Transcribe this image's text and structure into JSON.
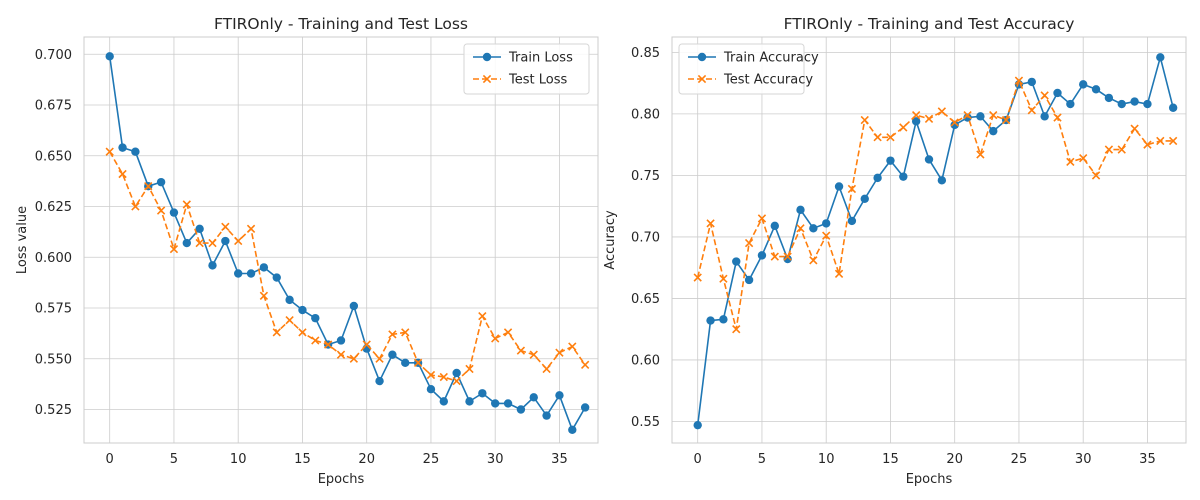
{
  "chart_data": [
    {
      "type": "line",
      "title": "FTIROnly - Training and Test Loss",
      "xlabel": "Epochs",
      "ylabel": "Loss value",
      "xlim": [
        -2,
        38
      ],
      "ylim": [
        0.5085,
        0.7085
      ],
      "xticks": [
        0,
        5,
        10,
        15,
        20,
        25,
        30,
        35
      ],
      "yticks": [
        0.525,
        0.55,
        0.575,
        0.6,
        0.625,
        0.65,
        0.675,
        0.7
      ],
      "ytick_decimals": 3,
      "grid": true,
      "legend_position": "top-right",
      "x": [
        0,
        1,
        2,
        3,
        4,
        5,
        6,
        7,
        8,
        9,
        10,
        11,
        12,
        13,
        14,
        15,
        16,
        17,
        18,
        19,
        20,
        21,
        22,
        23,
        24,
        25,
        26,
        27,
        28,
        29,
        30,
        31,
        32,
        33,
        34,
        35,
        36,
        37
      ],
      "series": [
        {
          "name": "Train Loss",
          "color": "#1f77b4",
          "line": "solid",
          "marker": "circle",
          "values": [
            0.699,
            0.654,
            0.652,
            0.635,
            0.637,
            0.622,
            0.607,
            0.614,
            0.596,
            0.608,
            0.592,
            0.592,
            0.595,
            0.59,
            0.579,
            0.574,
            0.57,
            0.557,
            0.559,
            0.576,
            0.555,
            0.539,
            0.552,
            0.548,
            0.548,
            0.535,
            0.529,
            0.543,
            0.529,
            0.533,
            0.528,
            0.528,
            0.525,
            0.531,
            0.522,
            0.532,
            0.515,
            0.526
          ]
        },
        {
          "name": "Test Loss",
          "color": "#ff7f0e",
          "line": "dashed",
          "marker": "x",
          "values": [
            0.652,
            0.641,
            0.625,
            0.635,
            0.623,
            0.604,
            0.626,
            0.607,
            0.607,
            0.615,
            0.608,
            0.614,
            0.581,
            0.563,
            0.569,
            0.563,
            0.559,
            0.557,
            0.552,
            0.55,
            0.557,
            0.55,
            0.562,
            0.563,
            0.548,
            0.542,
            0.541,
            0.539,
            0.545,
            0.571,
            0.56,
            0.563,
            0.554,
            0.552,
            0.545,
            0.553,
            0.556,
            0.547
          ]
        }
      ]
    },
    {
      "type": "line",
      "title": "FTIROnly - Training and Test Accuracy",
      "xlabel": "Epochs",
      "ylabel": "Accuracy",
      "xlim": [
        -2,
        38
      ],
      "ylim": [
        0.5325,
        0.8625
      ],
      "xticks": [
        0,
        5,
        10,
        15,
        20,
        25,
        30,
        35
      ],
      "yticks": [
        0.55,
        0.6,
        0.65,
        0.7,
        0.75,
        0.8,
        0.85
      ],
      "ytick_decimals": 2,
      "grid": true,
      "legend_position": "top-left",
      "x": [
        0,
        1,
        2,
        3,
        4,
        5,
        6,
        7,
        8,
        9,
        10,
        11,
        12,
        13,
        14,
        15,
        16,
        17,
        18,
        19,
        20,
        21,
        22,
        23,
        24,
        25,
        26,
        27,
        28,
        29,
        30,
        31,
        32,
        33,
        34,
        35,
        36,
        37
      ],
      "series": [
        {
          "name": "Train Accuracy",
          "color": "#1f77b4",
          "line": "solid",
          "marker": "circle",
          "values": [
            0.547,
            0.632,
            0.633,
            0.68,
            0.665,
            0.685,
            0.709,
            0.682,
            0.722,
            0.707,
            0.711,
            0.741,
            0.713,
            0.731,
            0.748,
            0.762,
            0.749,
            0.794,
            0.763,
            0.746,
            0.791,
            0.797,
            0.798,
            0.786,
            0.795,
            0.824,
            0.826,
            0.798,
            0.817,
            0.808,
            0.824,
            0.82,
            0.813,
            0.808,
            0.81,
            0.808,
            0.846,
            0.805
          ]
        },
        {
          "name": "Test Accuracy",
          "color": "#ff7f0e",
          "line": "dashed",
          "marker": "x",
          "values": [
            0.667,
            0.711,
            0.666,
            0.625,
            0.695,
            0.715,
            0.684,
            0.684,
            0.707,
            0.681,
            0.701,
            0.67,
            0.739,
            0.795,
            0.781,
            0.781,
            0.789,
            0.799,
            0.796,
            0.802,
            0.793,
            0.799,
            0.767,
            0.799,
            0.795,
            0.827,
            0.803,
            0.815,
            0.797,
            0.761,
            0.764,
            0.75,
            0.771,
            0.771,
            0.788,
            0.775,
            0.778,
            0.778
          ]
        }
      ]
    }
  ]
}
